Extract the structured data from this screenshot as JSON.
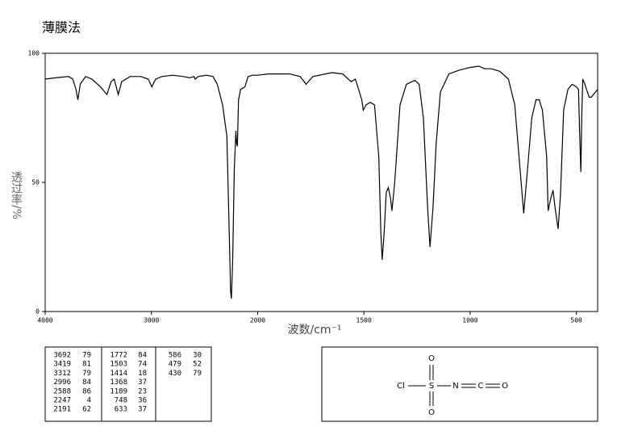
{
  "chart_data": {
    "type": "line",
    "title": "薄膜法",
    "xlabel": "波数/cm⁻¹",
    "ylabel": "透过率/%",
    "xlim": [
      4000,
      400
    ],
    "ylim": [
      0,
      100
    ],
    "xticks": [
      4000,
      3000,
      2000,
      1500,
      1000,
      500
    ],
    "yticks": [
      0,
      50,
      100
    ],
    "x": [
      4000,
      3900,
      3780,
      3740,
      3710,
      3692,
      3670,
      3620,
      3560,
      3480,
      3419,
      3380,
      3350,
      3312,
      3280,
      3200,
      3100,
      3030,
      2996,
      2960,
      2900,
      2800,
      2700,
      2640,
      2600,
      2588,
      2560,
      2480,
      2420,
      2380,
      2330,
      2290,
      2270,
      2255,
      2247,
      2235,
      2220,
      2205,
      2198,
      2191,
      2180,
      2160,
      2120,
      2090,
      2050,
      2000,
      1950,
      1850,
      1800,
      1772,
      1740,
      1650,
      1600,
      1560,
      1540,
      1510,
      1503,
      1490,
      1470,
      1450,
      1430,
      1420,
      1414,
      1405,
      1395,
      1385,
      1375,
      1368,
      1355,
      1330,
      1300,
      1260,
      1240,
      1220,
      1200,
      1189,
      1175,
      1160,
      1140,
      1100,
      1050,
      1000,
      960,
      930,
      900,
      860,
      820,
      790,
      770,
      748,
      730,
      710,
      690,
      675,
      660,
      640,
      633,
      620,
      610,
      600,
      586,
      575,
      560,
      540,
      520,
      500,
      490,
      485,
      479,
      475,
      470,
      460,
      440,
      430,
      410,
      400
    ],
    "series": [
      {
        "name": "transmittance",
        "color": "#000000",
        "values": [
          90,
          90.5,
          91,
          90,
          86,
          82,
          88,
          91,
          90,
          87,
          84,
          89,
          90,
          84,
          89,
          91,
          91,
          90,
          87,
          90,
          91,
          91.5,
          91,
          90.5,
          91,
          90,
          91,
          91.5,
          91,
          88,
          80,
          68,
          35,
          8,
          5,
          20,
          55,
          70,
          65,
          64,
          82,
          86,
          87,
          91,
          91.5,
          91.5,
          92,
          92,
          91,
          88,
          91,
          92.5,
          92,
          89,
          90,
          82,
          78,
          80,
          81,
          80,
          60,
          30,
          20,
          30,
          46,
          48,
          44,
          39,
          50,
          80,
          88,
          89.5,
          88,
          75,
          40,
          25,
          40,
          65,
          85,
          92,
          93.5,
          94.5,
          95,
          94,
          94,
          93,
          90,
          80,
          60,
          38,
          55,
          75,
          82,
          82,
          78,
          60,
          39,
          44,
          47,
          40,
          32,
          45,
          78,
          86,
          88,
          87,
          86,
          70,
          54,
          75,
          90,
          88,
          83,
          83,
          85,
          86
        ]
      }
    ]
  },
  "peak_table": [
    [
      3692,
      79
    ],
    [
      3419,
      81
    ],
    [
      3312,
      79
    ],
    [
      2996,
      84
    ],
    [
      2588,
      86
    ],
    [
      2247,
      4
    ],
    [
      2191,
      62
    ],
    [
      1772,
      84
    ],
    [
      1503,
      74
    ],
    [
      1414,
      18
    ],
    [
      1368,
      37
    ],
    [
      1189,
      23
    ],
    [
      748,
      36
    ],
    [
      633,
      37
    ],
    [
      586,
      30
    ],
    [
      479,
      52
    ],
    [
      430,
      79
    ]
  ],
  "structure": {
    "atoms": [
      "Cl",
      "S",
      "O",
      "O",
      "N",
      "C",
      "O"
    ]
  }
}
